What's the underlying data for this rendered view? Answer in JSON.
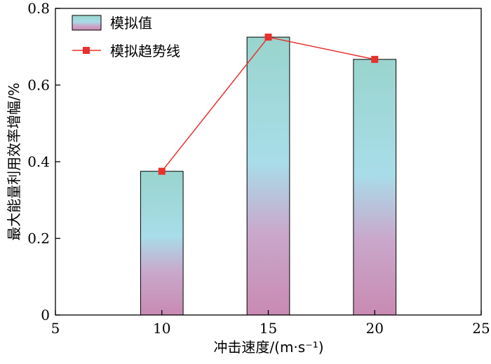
{
  "chart_data": {
    "type": "bar",
    "x": [
      10,
      15,
      20
    ],
    "series": [
      {
        "name": "模拟值",
        "kind": "bar",
        "values": [
          0.375,
          0.725,
          0.667
        ]
      },
      {
        "name": "模拟趋势线",
        "kind": "line",
        "values": [
          0.375,
          0.725,
          0.667
        ]
      }
    ],
    "xlabel": "冲击速度/(m·s⁻¹)",
    "ylabel": "最大能量利用效率增幅/%",
    "xlim": [
      5,
      25
    ],
    "ylim": [
      0,
      0.8
    ],
    "xticks": [
      "5",
      "10",
      "15",
      "20",
      "25"
    ],
    "yticks": [
      "0",
      "0.2",
      "0.4",
      "0.6",
      "0.8"
    ],
    "bar_width": 2,
    "grid": false,
    "legend_position": "top-left",
    "colors": {
      "bar_gradient": [
        "#99d4cd",
        "#a8dde9",
        "#c9a8cc",
        "#c98ab2"
      ],
      "line": "#e8302c",
      "marker": "#e8302c",
      "axis": "#000000"
    }
  }
}
